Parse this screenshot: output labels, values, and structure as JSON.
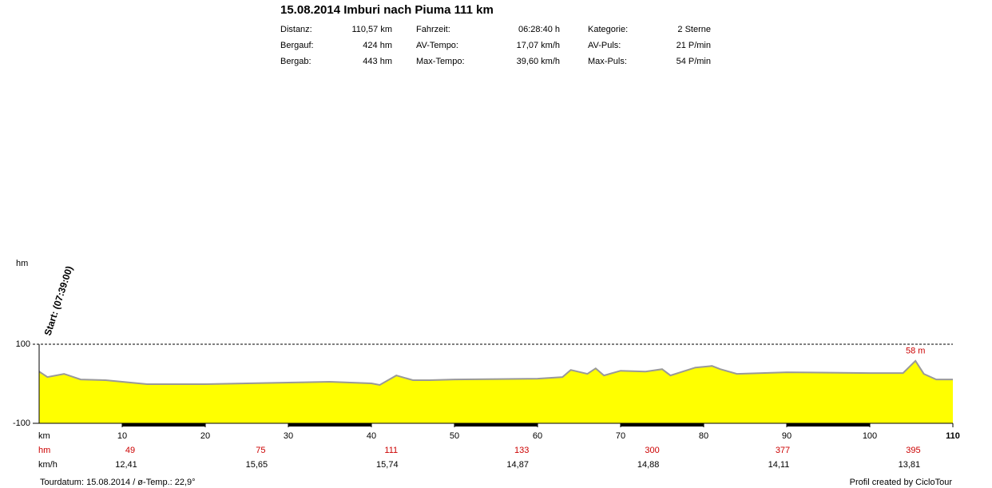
{
  "header": {
    "title": "15.08.2014 Imburi nach Piuma 111 km",
    "stats": [
      [
        [
          "Distanz:",
          "110,57 km"
        ],
        [
          "Fahrzeit:",
          "06:28:40 h"
        ],
        [
          "Kategorie:",
          "2 Sterne"
        ]
      ],
      [
        [
          "Bergauf:",
          "424 hm"
        ],
        [
          "AV-Tempo:",
          "17,07 km/h"
        ],
        [
          "AV-Puls:",
          "21 P/min"
        ]
      ],
      [
        [
          "Bergab:",
          "443 hm"
        ],
        [
          "Max-Tempo:",
          "39,60 km/h"
        ],
        [
          "Max-Puls:",
          "54 P/min"
        ]
      ]
    ]
  },
  "chart_data": {
    "type": "area",
    "y_label": "hm",
    "x_label": "km",
    "start_label": "Start: (07:39:00)",
    "max_label": "58 m",
    "x": [
      0,
      1,
      3,
      5,
      8,
      10,
      13,
      20,
      25,
      30,
      35,
      40,
      41,
      43,
      45,
      47,
      50,
      60,
      63,
      64,
      66,
      67,
      68,
      70,
      73,
      75,
      76,
      79,
      81,
      82,
      84,
      90,
      100,
      104,
      105.5,
      106.5,
      108,
      110
    ],
    "values": [
      31,
      17,
      25,
      11,
      9,
      5,
      -1,
      -1,
      1,
      3,
      5,
      1,
      -3,
      21,
      9,
      9,
      11,
      13,
      17,
      35,
      25,
      39,
      21,
      33,
      31,
      37,
      21,
      41,
      45,
      37,
      25,
      29,
      27,
      27,
      58,
      25,
      11,
      11
    ],
    "fill_color": "#ffff00",
    "line_color": "#999999",
    "xlim": [
      0,
      110
    ],
    "xticks": [
      10,
      20,
      30,
      40,
      50,
      60,
      70,
      80,
      90,
      100,
      110
    ],
    "ylim": [
      -100,
      100
    ],
    "yticks": [
      -100,
      100
    ],
    "climb_row": {
      "label": "hm",
      "color": "#cc0000",
      "values": [
        49,
        75,
        111,
        133,
        300,
        377,
        395
      ]
    },
    "speed_row": {
      "label": "km/h",
      "values": [
        12.41,
        15.65,
        15.74,
        14.87,
        14.88,
        14.11,
        13.81
      ],
      "value_labels": [
        "12,41",
        "15,65",
        "15,74",
        "14,87",
        "14,88",
        "14,11",
        "13,81"
      ]
    }
  },
  "footer": {
    "left": "Tourdatum: 15.08.2014  /  ø-Temp.: 22,9°",
    "right": "Profil created by CicloTour"
  }
}
